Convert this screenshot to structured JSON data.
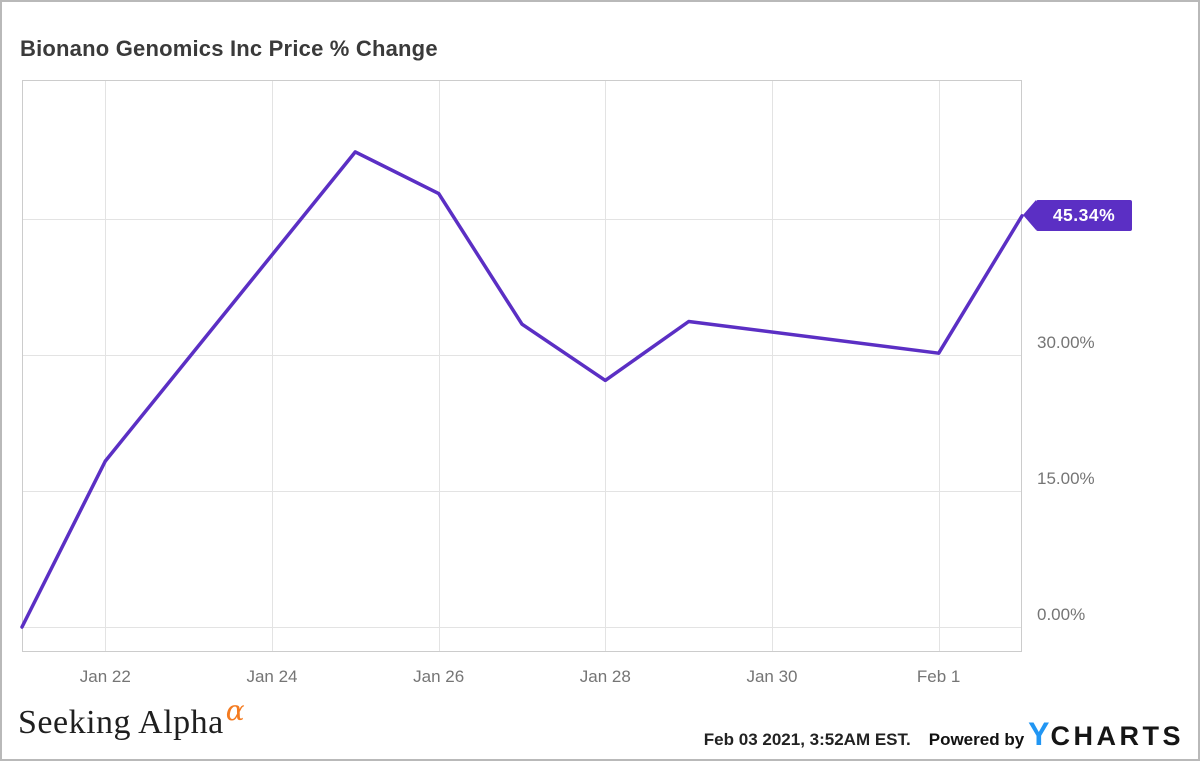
{
  "title": "Bionano Genomics Inc Price % Change",
  "chart_data": {
    "type": "line",
    "series_name": "Bionano Genomics Inc Price % Change",
    "unit": "percent",
    "line_color": "#5b2fc4",
    "grid": true,
    "legend": "none",
    "x_range_days_from_jan21": [
      0,
      12
    ],
    "y_axis": {
      "tick_interval": 15,
      "shown_ticks": [
        30,
        15,
        0
      ],
      "gridlines": [
        45,
        30,
        15,
        0
      ]
    },
    "points": [
      {
        "date": "Jan 21",
        "day": 0,
        "value": 0.0
      },
      {
        "date": "Jan 22",
        "day": 1,
        "value": 18.3
      },
      {
        "date": "Jan 25",
        "day": 4,
        "value": 52.4
      },
      {
        "date": "Jan 26",
        "day": 5,
        "value": 47.8
      },
      {
        "date": "Jan 27",
        "day": 6,
        "value": 33.4
      },
      {
        "date": "Jan 28",
        "day": 7,
        "value": 27.2
      },
      {
        "date": "Jan 29",
        "day": 8,
        "value": 33.7
      },
      {
        "date": "Feb 1",
        "day": 11,
        "value": 30.2
      },
      {
        "date": "Feb 2",
        "day": 12,
        "value": 45.34
      }
    ],
    "x_ticks": [
      {
        "label": "Jan 22",
        "day": 1
      },
      {
        "label": "Jan 24",
        "day": 3
      },
      {
        "label": "Jan 26",
        "day": 5
      },
      {
        "label": "Jan 28",
        "day": 7
      },
      {
        "label": "Jan 30",
        "day": 9
      },
      {
        "label": "Feb 1",
        "day": 11
      }
    ],
    "y_ticks": [
      {
        "label": "30.00%",
        "value": 30
      },
      {
        "label": "15.00%",
        "value": 15
      },
      {
        "label": "0.00%",
        "value": 0
      }
    ],
    "last_value_label": "45.34%",
    "last_value": 45.34
  },
  "footer": {
    "brand": "Seeking Alpha",
    "brand_alpha": "α",
    "timestamp": "Feb 03 2021, 3:52AM EST.",
    "powered_by": "Powered by",
    "ycharts_y": "Y",
    "ycharts_rest": "CHARTS"
  },
  "colors": {
    "line": "#5b2fc4",
    "tag_background": "#5b2fc4",
    "axis_text": "#757575",
    "title_text": "#3a3a3a",
    "alpha_orange": "#f47b20",
    "ycharts_blue": "#2196f3",
    "gridline": "#e3e3e3"
  }
}
